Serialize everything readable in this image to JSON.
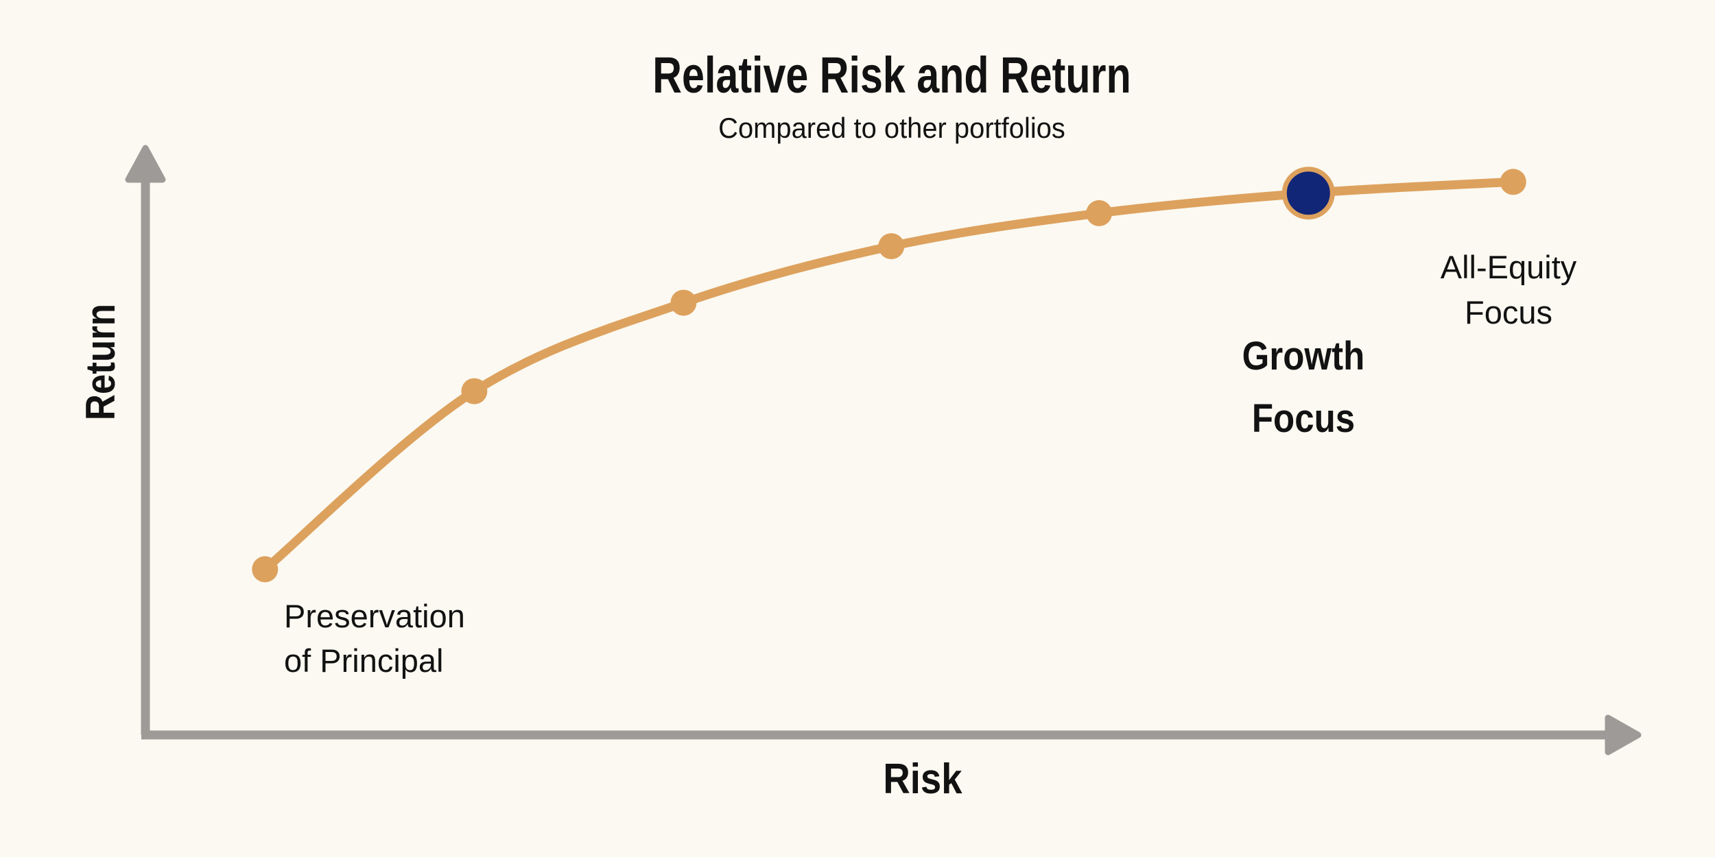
{
  "page": {
    "background": "#FBF9F1"
  },
  "colors": {
    "background": "#FBF9F1",
    "curve": "#DDA15E",
    "highlight_dot": "#122678",
    "axis": "#9E9A97",
    "text": "#121212"
  },
  "chart_data": {
    "type": "line",
    "title": "Relative Risk and Return",
    "subtitle": "Compared to other portfolios",
    "xlabel": "Risk",
    "ylabel": "Return",
    "grid": false,
    "axes_style": "arrows-no-ticks",
    "x_range": [
      0,
      1
    ],
    "y_range": [
      0,
      1
    ],
    "series": [
      {
        "name": "portfolio-risk-return-curve",
        "color": "#DDA15E",
        "marker_radius": 19,
        "line_width": 13,
        "points": [
          {
            "risk": 0.08,
            "return": 0.281,
            "label": "Preservation of Principal",
            "highlighted": false
          },
          {
            "risk": 0.22,
            "return": 0.583,
            "label": "",
            "highlighted": false
          },
          {
            "risk": 0.36,
            "return": 0.733,
            "label": "",
            "highlighted": false
          },
          {
            "risk": 0.499,
            "return": 0.829,
            "label": "",
            "highlighted": false
          },
          {
            "risk": 0.638,
            "return": 0.885,
            "label": "",
            "highlighted": false
          },
          {
            "risk": 0.778,
            "return": 0.919,
            "label": "Growth Focus",
            "highlighted": true
          },
          {
            "risk": 0.915,
            "return": 0.938,
            "label": "All-Equity Focus",
            "highlighted": false
          }
        ]
      }
    ],
    "highlight_marker": {
      "fill": "#122678",
      "ring_color": "#DDA15E",
      "radius": 35,
      "ring_width": 7
    }
  },
  "labels": {
    "preservation": "Preservation\nof Principal",
    "growth": "Growth\nFocus",
    "all_equity": "All-Equity\nFocus"
  }
}
